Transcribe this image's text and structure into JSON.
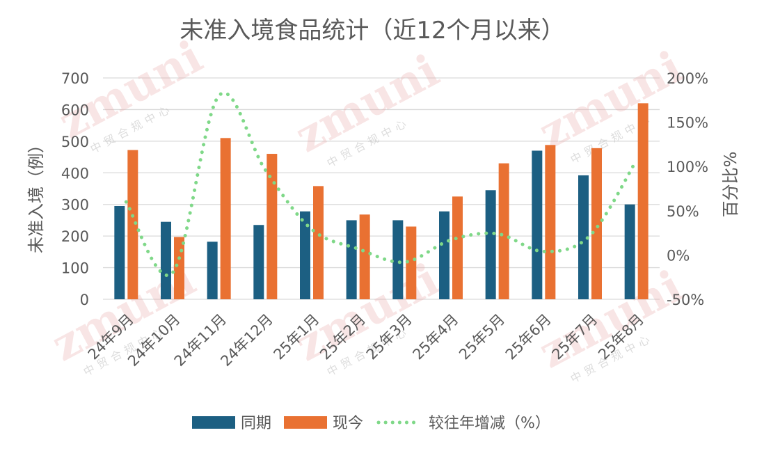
{
  "chart_data": {
    "type": "bar",
    "title": "未准入境食品统计（近12个月以来）",
    "ylabel": "未准入境（例）",
    "y2label": "百分比%",
    "categories": [
      "24年9月",
      "24年10月",
      "24年11月",
      "24年12月",
      "25年1月",
      "25年2月",
      "25年3月",
      "25年4月",
      "25年5月",
      "25年6月",
      "25年7月",
      "25年8月"
    ],
    "ylim": [
      0,
      700
    ],
    "y2lim": [
      -0.5,
      2.0
    ],
    "y_ticks": [
      "0",
      "100",
      "200",
      "300",
      "400",
      "500",
      "600",
      "700"
    ],
    "y2_ticks": [
      "-50%",
      "0%",
      "50%",
      "100%",
      "150%",
      "200%"
    ],
    "series": [
      {
        "name": "同期",
        "kind": "bar",
        "axis": "left",
        "color": "#1c5f82",
        "values": [
          295,
          245,
          182,
          235,
          278,
          250,
          250,
          278,
          345,
          470,
          392,
          300
        ]
      },
      {
        "name": "现今",
        "kind": "bar",
        "axis": "left",
        "color": "#e97132",
        "values": [
          472,
          197,
          510,
          460,
          358,
          268,
          230,
          325,
          430,
          488,
          478,
          620
        ]
      },
      {
        "name": "较往年增减（%）",
        "kind": "line",
        "axis": "right",
        "color": "#7fd888",
        "values": [
          0.6,
          -0.2,
          1.8,
          0.96,
          0.29,
          0.07,
          -0.08,
          0.17,
          0.24,
          0.04,
          0.22,
          1.07
        ]
      }
    ],
    "grid": true,
    "legend_position": "bottom"
  },
  "watermark": {
    "logo_text": "zmuni",
    "sub_text": "中贸合规中心"
  }
}
